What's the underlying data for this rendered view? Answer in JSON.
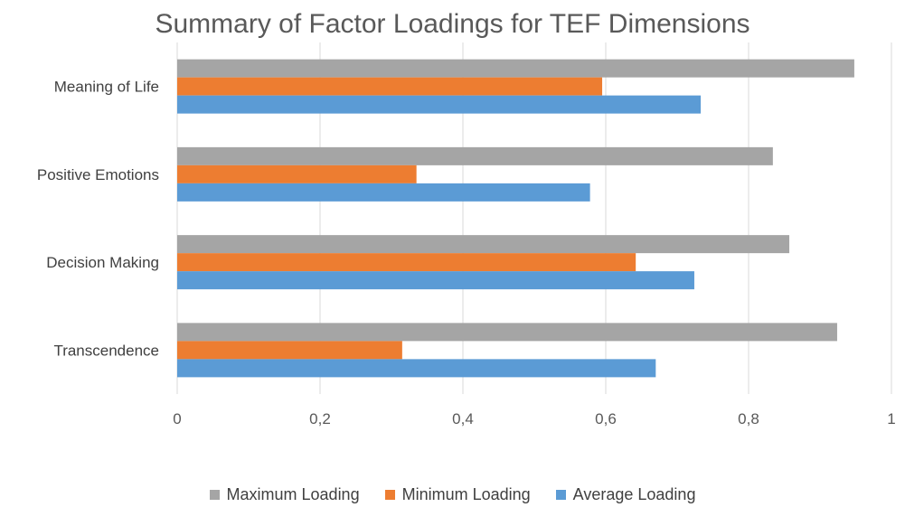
{
  "chart_data": {
    "type": "bar",
    "orientation": "horizontal",
    "title": "Summary of Factor Loadings for TEF Dimensions",
    "categories": [
      "Meaning of Life",
      "Positive Emotions",
      "Decision Making",
      "Transcendence"
    ],
    "series": [
      {
        "name": "Maximum Loading",
        "color": "#a5a5a5",
        "values": [
          0.948,
          0.834,
          0.857,
          0.924
        ]
      },
      {
        "name": "Minimum Loading",
        "color": "#ed7d31",
        "values": [
          0.595,
          0.335,
          0.642,
          0.315
        ]
      },
      {
        "name": "Average Loading",
        "color": "#5b9bd5",
        "values": [
          0.733,
          0.578,
          0.724,
          0.67
        ]
      }
    ],
    "xlim": [
      0,
      1
    ],
    "xticks": [
      "0",
      "0,2",
      "0,4",
      "0,6",
      "0,8",
      "1"
    ],
    "grid": "vertical",
    "legend_position": "bottom"
  }
}
